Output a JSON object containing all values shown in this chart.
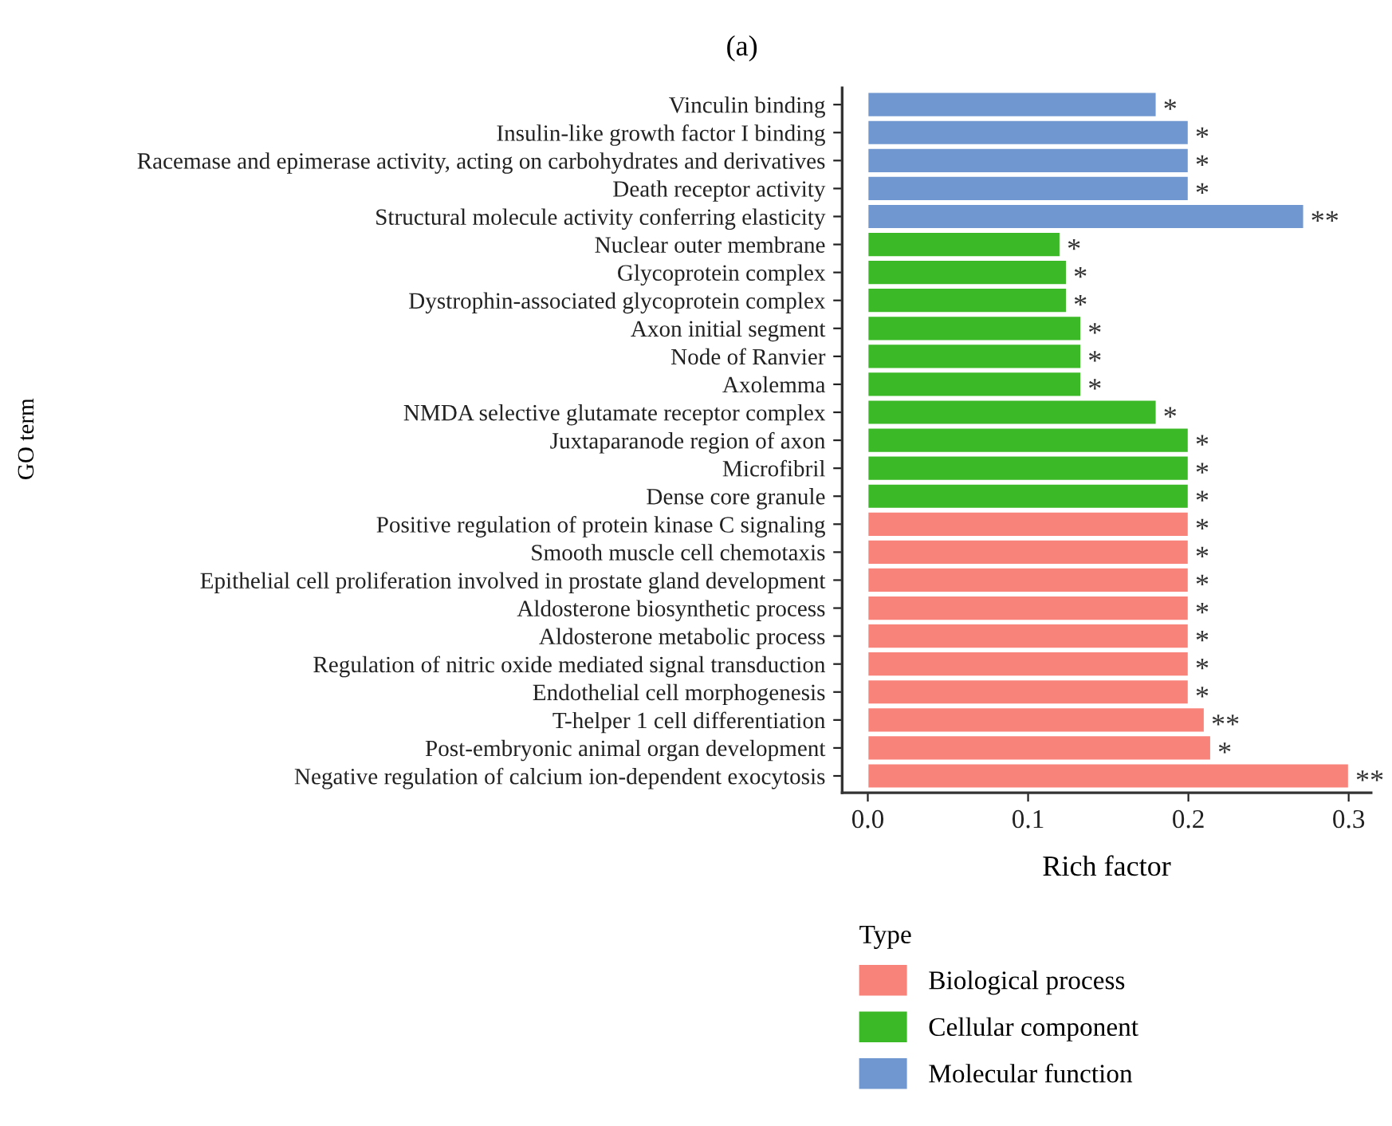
{
  "chart_data": {
    "type": "bar",
    "orientation": "horizontal",
    "title": "(a)",
    "xlabel": "Rich factor",
    "ylabel": "GO term",
    "legend_title": "Type",
    "legend": "bottom",
    "grid": false,
    "categories": [
      "Vinculin binding",
      "Insulin-like growth factor I binding",
      "Racemase and epimerase activity, acting on carbohydrates and derivatives",
      "Death receptor activity",
      "Structural molecule activity conferring elasticity",
      "Nuclear outer membrane",
      "Glycoprotein complex",
      "Dystrophin-associated glycoprotein complex",
      "Axon initial segment",
      "Node of Ranvier",
      "Axolemma",
      "NMDA selective glutamate receptor complex",
      "Juxtaparanode region of axon",
      "Microfibril",
      "Dense core granule",
      "Positive regulation of protein kinase C signaling",
      "Smooth muscle cell chemotaxis",
      "Epithelial cell proliferation involved in prostate gland development",
      "Aldosterone biosynthetic process",
      "Aldosterone metabolic process",
      "Regulation of nitric oxide mediated signal transduction",
      "Endothelial cell morphogenesis",
      "T-helper 1 cell differentiation",
      "Post-embryonic animal organ development",
      "Negative regulation of calcium ion-dependent exocytosis"
    ],
    "series": [
      {
        "name": "Biological process",
        "color": "#f8837a",
        "values": [
          null,
          null,
          null,
          null,
          null,
          null,
          null,
          null,
          null,
          null,
          null,
          null,
          null,
          null,
          null,
          0.2,
          0.2,
          0.2,
          0.2,
          0.2,
          0.2,
          0.2,
          0.21,
          0.214,
          0.3
        ]
      },
      {
        "name": "Cellular component",
        "color": "#3cb926",
        "values": [
          null,
          null,
          null,
          null,
          null,
          0.12,
          0.124,
          0.124,
          0.133,
          0.133,
          0.133,
          0.18,
          0.2,
          0.2,
          0.2,
          null,
          null,
          null,
          null,
          null,
          null,
          null,
          null,
          null,
          null
        ]
      },
      {
        "name": "Molecular function",
        "color": "#7097cf",
        "values": [
          0.18,
          0.2,
          0.2,
          0.2,
          0.272,
          null,
          null,
          null,
          null,
          null,
          null,
          null,
          null,
          null,
          null,
          null,
          null,
          null,
          null,
          null,
          null,
          null,
          null,
          null,
          null
        ]
      }
    ],
    "value_labels": [
      "*",
      "*",
      "*",
      "*",
      "**",
      "*",
      "*",
      "*",
      "*",
      "*",
      "*",
      "*",
      "*",
      "*",
      "*",
      "*",
      "*",
      "*",
      "*",
      "*",
      "*",
      "*",
      "**",
      "*",
      "**"
    ],
    "xlim": [
      -0.016,
      0.314
    ],
    "xticks": [
      {
        "value": 0,
        "label": "0.0"
      },
      0.1,
      0.2,
      0.3
    ]
  }
}
